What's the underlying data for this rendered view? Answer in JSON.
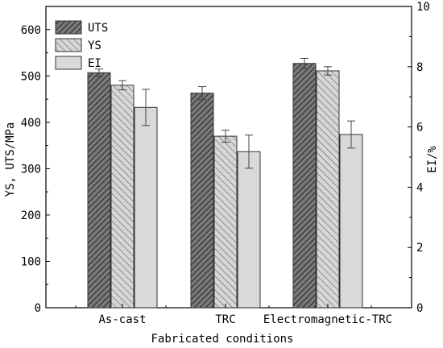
{
  "chart_data": {
    "type": "bar",
    "xlabel": "Fabricated conditions",
    "ylabel_left": "YS, UTS/MPa",
    "ylabel_right": "EI/%",
    "ylim_left": [
      0,
      650
    ],
    "ylim_right": [
      0,
      10
    ],
    "yticks_left": [
      "0",
      "100",
      "200",
      "300",
      "400",
      "500",
      "600"
    ],
    "yticks_right": [
      "0",
      "2",
      "4",
      "6",
      "8",
      "10"
    ],
    "categories": [
      "As-cast",
      "TRC",
      "Electromagnetic-TRC"
    ],
    "series": [
      {
        "name": "UTS",
        "axis": "left",
        "pattern": "dense-cross",
        "color": "#5a5a5a",
        "values": [
          507,
          463,
          527
        ],
        "errors": [
          8,
          14,
          11
        ]
      },
      {
        "name": "YS",
        "axis": "left",
        "pattern": "diagonal",
        "color": "#c8c8c8",
        "values": [
          480,
          370,
          511
        ],
        "errors": [
          10,
          13,
          9
        ]
      },
      {
        "name": "EI",
        "axis": "right",
        "pattern": "solid",
        "color": "#d9d9d9",
        "values": [
          6.65,
          5.18,
          5.75
        ],
        "errors": [
          0.6,
          0.55,
          0.45
        ]
      }
    ],
    "legend": {
      "position": "top-left",
      "boxed": true
    },
    "grid": false
  }
}
